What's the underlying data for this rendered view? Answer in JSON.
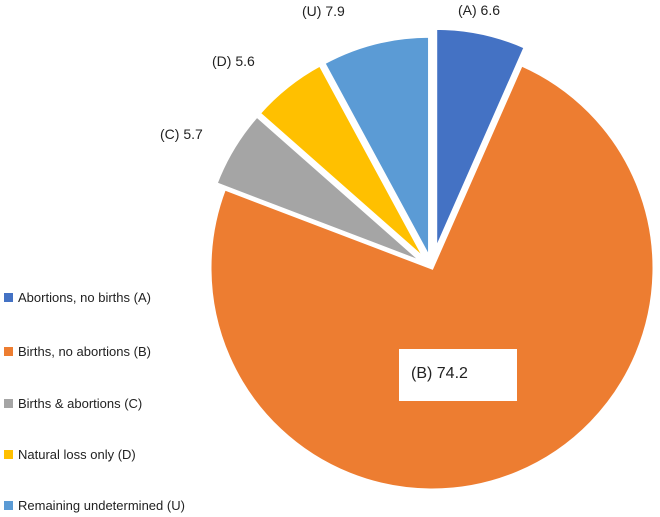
{
  "chart_data": {
    "type": "pie",
    "title": "",
    "exploded": true,
    "slices": [
      {
        "key": "A",
        "name": "Abortions, no births (A)",
        "value": 6.6,
        "color": "#4472C4",
        "label": "(A) 6.6"
      },
      {
        "key": "B",
        "name": "Births, no abortions (B)",
        "value": 74.2,
        "color": "#ED7D31",
        "label": "(B) 74.2"
      },
      {
        "key": "C",
        "name": "Births & abortions (C)",
        "value": 5.7,
        "color": "#A5A5A5",
        "label": "(C) 5.7"
      },
      {
        "key": "D",
        "name": "Natural loss only (D)",
        "value": 5.6,
        "color": "#FFC000",
        "label": "(D) 5.6"
      },
      {
        "key": "U",
        "name": "Remaining undetermined (U)",
        "value": 7.9,
        "color": "#5B9BD5",
        "label": "(U) 7.9"
      }
    ],
    "legend_position": "left"
  }
}
